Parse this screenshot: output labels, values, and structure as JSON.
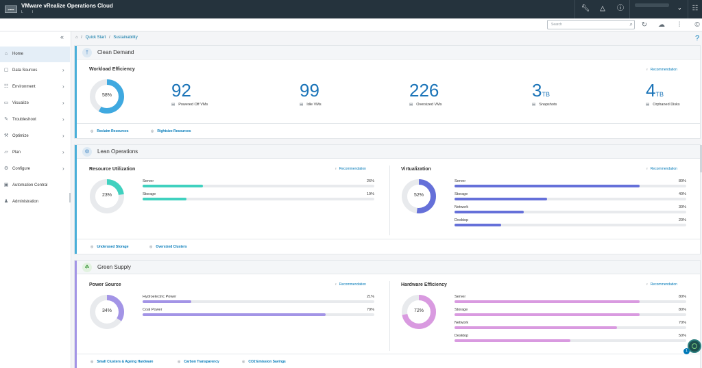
{
  "app": {
    "logo": "vmw",
    "title": "VMware vRealize Operations Cloud",
    "subtitle": "L      I"
  },
  "header_icons": [
    "wrench-icon",
    "bell-icon",
    "help-icon",
    "grid-icon"
  ],
  "toolbar": {
    "search_placeholder": "Search"
  },
  "sidebar": {
    "items": [
      {
        "label": "Home",
        "icon": "home-icon",
        "active": true,
        "chevron": false
      },
      {
        "label": "Data Sources",
        "icon": "database-icon",
        "chevron": true
      },
      {
        "label": "Environment",
        "icon": "environment-icon",
        "chevron": true
      },
      {
        "label": "Visualize",
        "icon": "visualize-icon",
        "chevron": true
      },
      {
        "label": "Troubleshoot",
        "icon": "troubleshoot-icon",
        "chevron": true
      },
      {
        "label": "Optimize",
        "icon": "optimize-icon",
        "chevron": true
      },
      {
        "label": "Plan",
        "icon": "plan-icon",
        "chevron": true
      },
      {
        "label": "Configure",
        "icon": "configure-icon",
        "chevron": true
      },
      {
        "label": "Automation Central",
        "icon": "automation-icon",
        "chevron": false
      },
      {
        "label": "Administration",
        "icon": "administration-icon",
        "chevron": false
      }
    ]
  },
  "breadcrumb": {
    "quick_start": "Quick Start",
    "sustainability": "Sustainability",
    "sep": "/"
  },
  "clean_demand": {
    "title": "Clean Demand",
    "card_title": "Workload Efficiency",
    "recommendation": "Recommendation",
    "donut": {
      "value": 58,
      "label": "58%",
      "color": "#3fa9e0"
    },
    "metrics": [
      {
        "value": "92",
        "unit": "",
        "label": "Powered Off VMs"
      },
      {
        "value": "99",
        "unit": "",
        "label": "Idle VMs"
      },
      {
        "value": "226",
        "unit": "",
        "label": "Oversized VMs"
      },
      {
        "value": "3",
        "unit": "TB",
        "label": "Snapshots"
      },
      {
        "value": "4",
        "unit": "TB",
        "label": "Orphaned Disks"
      }
    ],
    "footer": [
      "Reclaim Resources",
      "Rightsize Resources"
    ]
  },
  "lean_operations": {
    "title": "Lean Operations",
    "resource": {
      "title": "Resource Utilization",
      "recommendation": "Recommendation",
      "donut": {
        "value": 23,
        "label": "23%",
        "color": "#40d1bf"
      },
      "bars": [
        {
          "label": "Server",
          "value": 26,
          "display": "26%"
        },
        {
          "label": "Storage",
          "value": 19,
          "display": "19%"
        }
      ],
      "bar_color": "#40d1bf"
    },
    "virtualization": {
      "title": "Virtualization",
      "recommendation": "Recommendation",
      "donut": {
        "value": 52,
        "label": "52%",
        "color": "#6570d9"
      },
      "bars": [
        {
          "label": "Server",
          "value": 80,
          "display": "80%"
        },
        {
          "label": "Storage",
          "value": 40,
          "display": "40%"
        },
        {
          "label": "Network",
          "value": 30,
          "display": "30%"
        },
        {
          "label": "Desktop",
          "value": 20,
          "display": "20%"
        }
      ],
      "bar_color": "#6570d9"
    },
    "footer": [
      "Underused Storage",
      "Oversized Clusters"
    ]
  },
  "green_supply": {
    "title": "Green Supply",
    "power": {
      "title": "Power Source",
      "recommendation": "Recommendation",
      "donut": {
        "value": 34,
        "label": "34%",
        "color": "#a394e6"
      },
      "bars": [
        {
          "label": "Hydroelectric Power",
          "value": 21,
          "display": "21%"
        },
        {
          "label": "Coal Power",
          "value": 79,
          "display": "79%"
        }
      ],
      "bar_color": "#a394e6"
    },
    "hardware": {
      "title": "Hardware Efficiency",
      "recommendation": "Recommendation",
      "donut": {
        "value": 72,
        "label": "72%",
        "color": "#d99ae0"
      },
      "bars": [
        {
          "label": "Server",
          "value": 80,
          "display": "80%"
        },
        {
          "label": "Storage",
          "value": 80,
          "display": "80%"
        },
        {
          "label": "Network",
          "value": 70,
          "display": "70%"
        },
        {
          "label": "Desktop",
          "value": 50,
          "display": "50%"
        }
      ],
      "bar_color": "#d99ae0"
    },
    "footer": [
      "Small Clusters & Ageing Hardware",
      "Carbon Transparency",
      "CO2 Emission Savings"
    ]
  },
  "notifications": {
    "count": "1"
  }
}
